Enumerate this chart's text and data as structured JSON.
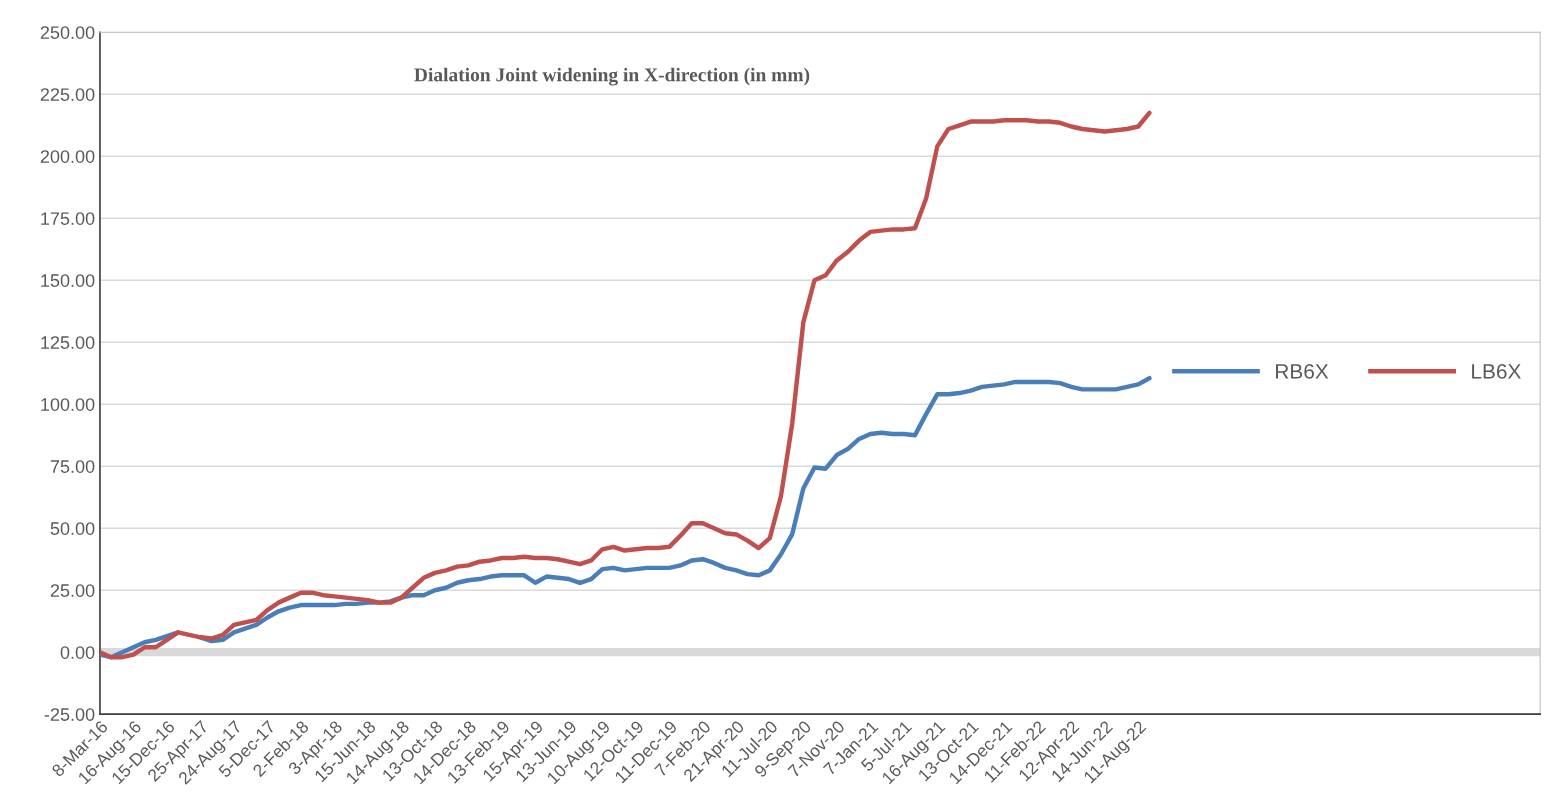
{
  "chart_data": {
    "type": "line",
    "title": "Dialation Joint widening in X-direction (in mm)",
    "categories": [
      "8-Mar-16",
      null,
      null,
      "16-Aug-16",
      null,
      null,
      "15-Dec-16",
      null,
      null,
      "25-Apr-17",
      null,
      null,
      "24-Aug-17",
      null,
      null,
      "5-Dec-17",
      null,
      null,
      "2-Feb-18",
      null,
      null,
      "3-Apr-18",
      null,
      null,
      "15-Jun-18",
      null,
      null,
      "14-Aug-18",
      null,
      null,
      "13-Oct-18",
      null,
      null,
      "14-Dec-18",
      null,
      null,
      "13-Feb-19",
      null,
      null,
      "15-Apr-19",
      null,
      null,
      "13-Jun-19",
      null,
      null,
      "10-Aug-19",
      null,
      null,
      "12-Oct-19",
      null,
      null,
      "11-Dec-19",
      null,
      null,
      "7-Feb-20",
      null,
      null,
      "21-Apr-20",
      null,
      null,
      "11-Jul-20",
      null,
      null,
      "9-Sep-20",
      null,
      null,
      "7-Nov-20",
      null,
      null,
      "7-Jan-21",
      null,
      null,
      "5-Jul-21",
      null,
      null,
      "16-Aug-21",
      null,
      null,
      "13-Oct-21",
      null,
      null,
      "14-Dec-21",
      null,
      null,
      "11-Feb-22",
      null,
      null,
      "12-Apr-22",
      null,
      null,
      "14-Jun-22",
      null,
      null,
      "11-Aug-22",
      null,
      null,
      null,
      null,
      null,
      null,
      null,
      null,
      null,
      null,
      null,
      null,
      null,
      null,
      null,
      null,
      null,
      null,
      null,
      null,
      null,
      null,
      null,
      null,
      null,
      null,
      null,
      null,
      null,
      null,
      null,
      null,
      null,
      null,
      null,
      null
    ],
    "series": [
      {
        "name": "RB6X",
        "color": "#4a7ebb",
        "values": [
          -1,
          -2,
          0,
          2,
          4,
          5,
          6.5,
          8,
          null,
          6,
          4.5,
          5,
          8,
          9.5,
          11,
          14,
          16.5,
          18,
          19,
          19,
          19,
          19,
          19.5,
          19.5,
          20,
          20,
          20.5,
          22,
          23,
          23,
          25,
          26,
          28,
          29,
          29.5,
          30.5,
          31,
          31,
          31,
          28,
          30.5,
          30,
          29.5,
          28,
          29.5,
          33.5,
          34,
          33,
          33.5,
          34,
          34,
          34,
          35,
          37,
          37.5,
          36,
          34,
          33,
          31.5,
          31,
          33,
          39.5,
          47.5,
          66,
          74.5,
          74,
          79.5,
          82,
          86,
          88,
          88.5,
          88,
          88,
          87.5,
          96,
          104,
          104,
          104.5,
          105.5,
          107,
          107.5,
          108,
          109,
          109,
          109,
          109,
          108.5,
          107,
          106,
          106,
          106,
          106,
          107,
          108,
          110.5,
          null,
          null,
          null,
          null,
          null,
          null,
          null,
          null,
          null,
          null,
          null,
          null,
          null,
          null,
          null,
          null,
          null,
          null,
          null,
          null,
          null,
          null,
          null,
          null,
          null,
          null,
          null,
          null,
          null,
          null,
          null,
          null,
          null,
          null,
          null
        ]
      },
      {
        "name": "LB6X",
        "color": "#c0504d",
        "values": [
          0,
          -2,
          -2,
          -1,
          2,
          2,
          5,
          8,
          7,
          6,
          5.5,
          7,
          11,
          12,
          13,
          17,
          20,
          22,
          24,
          24,
          23,
          22.5,
          22,
          21.5,
          21,
          20,
          20,
          22,
          26,
          30,
          32,
          33,
          34.5,
          35,
          36.5,
          37,
          38,
          38,
          38.5,
          38,
          38,
          37.5,
          36.5,
          35.5,
          37,
          41.5,
          42.5,
          41,
          41.5,
          42,
          42,
          42.5,
          47,
          52,
          52,
          50,
          48,
          47.5,
          45,
          42,
          46,
          63,
          92,
          133,
          150,
          152,
          158,
          161.5,
          166,
          169.5,
          170,
          170.5,
          170.5,
          171,
          183,
          204,
          211,
          212.5,
          214,
          214,
          214,
          214.5,
          214.5,
          214.5,
          214,
          214,
          213.5,
          212,
          211,
          210.5,
          210,
          210.5,
          211,
          212,
          217.5,
          null,
          null,
          null,
          null,
          null,
          null,
          null,
          null,
          null,
          null,
          null,
          null,
          null,
          null,
          null,
          null,
          null,
          null,
          null,
          null,
          null,
          null,
          null,
          null,
          null,
          null,
          null,
          null,
          null,
          null,
          null,
          null,
          null,
          null,
          null
        ]
      }
    ],
    "ylim": [
      -25,
      250
    ],
    "yticks": [
      {
        "value": -25,
        "label": "-25.00"
      },
      {
        "value": 0,
        "label": "0.00"
      },
      {
        "value": 25,
        "label": "25.00"
      },
      {
        "value": 50,
        "label": "50.00"
      },
      {
        "value": 75,
        "label": "75.00"
      },
      {
        "value": 100,
        "label": "100.00"
      },
      {
        "value": 125,
        "label": "125.00"
      },
      {
        "value": 150,
        "label": "150.00"
      },
      {
        "value": 175,
        "label": "175.00"
      },
      {
        "value": 200,
        "label": "200.00"
      },
      {
        "value": 225,
        "label": "225.00"
      },
      {
        "value": 250,
        "label": "250.00"
      }
    ],
    "ref_lines": [
      {
        "axis": "y",
        "value": 0,
        "color": "#d9d9d9"
      }
    ],
    "grid": "y",
    "legend": "center right",
    "marker": "none",
    "line_style": "solid"
  }
}
